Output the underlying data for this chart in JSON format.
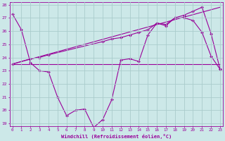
{
  "xlabel": "Windchill (Refroidissement éolien,°C)",
  "background_color": "#cce8e8",
  "grid_color": "#aacccc",
  "line_color": "#990099",
  "x_min": 0,
  "x_max": 23,
  "y_min": 19,
  "y_max": 28,
  "line1_x": [
    0,
    1,
    2,
    3,
    4,
    5,
    6,
    7,
    8,
    9,
    10,
    11,
    12,
    13,
    14,
    15,
    16,
    17,
    18,
    19,
    20,
    21,
    22,
    23
  ],
  "line1_y": [
    27.3,
    26.1,
    23.6,
    23.0,
    22.9,
    21.0,
    19.6,
    20.0,
    20.1,
    18.7,
    19.3,
    20.8,
    23.8,
    23.9,
    23.7,
    25.7,
    26.6,
    26.4,
    27.0,
    27.0,
    26.8,
    25.9,
    24.1,
    23.1
  ],
  "line2_x": [
    0,
    1,
    2,
    3,
    4,
    5,
    6,
    7,
    8,
    9,
    10,
    11,
    12,
    13,
    14,
    15,
    16,
    17,
    18,
    19,
    20,
    21,
    22,
    23
  ],
  "line2_y": [
    23.5,
    23.5,
    23.5,
    23.5,
    23.5,
    23.5,
    23.5,
    23.5,
    23.5,
    23.5,
    23.5,
    23.5,
    23.5,
    23.5,
    23.5,
    23.5,
    23.5,
    23.5,
    23.5,
    23.5,
    23.5,
    23.5,
    23.5,
    23.5
  ],
  "line3_x": [
    0,
    2,
    3,
    4,
    10,
    11,
    12,
    13,
    14,
    15,
    16,
    17,
    18,
    19,
    20,
    21,
    22,
    23
  ],
  "line3_y": [
    23.5,
    23.9,
    24.0,
    24.2,
    25.2,
    25.4,
    25.5,
    25.7,
    25.9,
    26.1,
    26.6,
    26.5,
    27.0,
    27.2,
    27.5,
    27.8,
    25.8,
    23.1
  ],
  "line4_x": [
    0,
    23
  ],
  "line4_y": [
    23.5,
    27.8
  ]
}
